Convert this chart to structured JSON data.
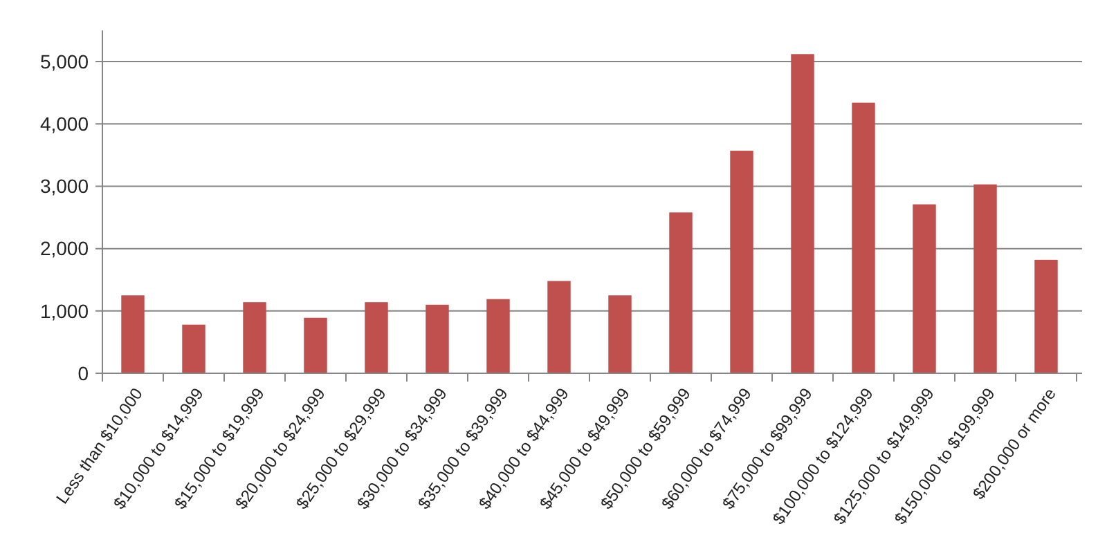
{
  "chart_data": {
    "type": "bar",
    "categories": [
      "Less than $10,000",
      "$10,000 to $14,999",
      "$15,000 to $19,999",
      "$20,000 to $24,999",
      "$25,000 to $29,999",
      "$30,000 to $34,999",
      "$35,000 to $39,999",
      "$40,000 to $44,999",
      "$45,000 to $49,999",
      "$50,000 to $59,999",
      "$60,000 to $74,999",
      "$75,000 to $99,999",
      "$100,000 to $124,999",
      "$125,000 to $149,999",
      "$150,000 to $199,999",
      "$200,000 or more"
    ],
    "values": [
      1250,
      780,
      1140,
      890,
      1140,
      1100,
      1190,
      1480,
      1250,
      2580,
      3570,
      5120,
      4340,
      2710,
      3030,
      1820
    ],
    "color": "#c0504d",
    "ylim": [
      0,
      5500
    ],
    "yticks": [
      0,
      {
        "value": 1000,
        "label": "1,000"
      },
      {
        "value": 2000,
        "label": "2,000"
      },
      {
        "value": 3000,
        "label": "3,000"
      },
      {
        "value": 4000,
        "label": "4,000"
      },
      {
        "value": 5000,
        "label": "5,000"
      }
    ],
    "grid": "y"
  }
}
